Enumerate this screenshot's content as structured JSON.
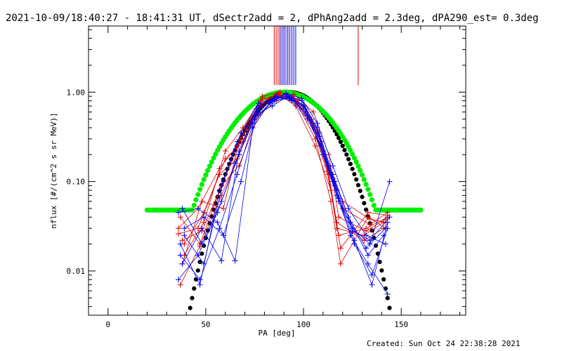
{
  "chart_data": {
    "type": "line",
    "title": "2021-10-09/18:40:27 - 18:41:31 UT, dSectr2add = 2, dPhAng2add = 2.3deg, dPA290_est=  0.3deg",
    "xlabel": "PA [deg]",
    "ylabel": "nflux [#/(cm^2 s sr MeV)]",
    "footer": "Created: Sun Oct 24 22:38:28 2021",
    "x_scale": "linear",
    "y_scale": "log",
    "xlim": [
      -10,
      183
    ],
    "ylim": [
      0.0032,
      5.5
    ],
    "x_ticks": [
      {
        "v": 0,
        "t": "0"
      },
      {
        "v": 50,
        "t": "50"
      },
      {
        "v": 100,
        "t": "100"
      },
      {
        "v": 150,
        "t": "150"
      }
    ],
    "y_ticks": [
      {
        "v": 0.01,
        "t": "0.01"
      },
      {
        "v": 0.1,
        "t": "0.10"
      },
      {
        "v": 1,
        "t": "1.00"
      }
    ],
    "grid": false,
    "colors": {
      "red": "#dd0000",
      "blue": "#0000ee",
      "green": "#00ee00",
      "black": "#000000"
    },
    "vertical_markers": {
      "top": 5.5,
      "bottom": 1.2,
      "red_pa": [
        85,
        86,
        87,
        88,
        89,
        90,
        91,
        92,
        128
      ],
      "blue_pa": [
        88,
        89,
        90,
        91,
        92,
        93,
        94,
        95,
        96
      ]
    },
    "model_curves": [
      {
        "color": "green",
        "pa_range": [
          20,
          160
        ],
        "step": 1
      },
      {
        "color": "black",
        "pa_range": [
          20,
          156
        ],
        "step": 1
      }
    ],
    "series": [
      {
        "color": "red",
        "x": [
          37,
          47,
          58,
          67,
          77,
          86,
          95,
          105,
          113,
          118,
          132,
          143
        ],
        "y": [
          0.007,
          0.019,
          0.07,
          0.2,
          0.7,
          0.95,
          0.85,
          0.42,
          0.12,
          0.025,
          0.03,
          0.04
        ]
      },
      {
        "color": "red",
        "x": [
          38,
          48,
          59,
          68,
          78,
          87,
          96,
          106,
          114,
          119,
          133,
          142
        ],
        "y": [
          0.022,
          0.028,
          0.1,
          0.3,
          0.8,
          0.92,
          0.8,
          0.3,
          0.06,
          0.012,
          0.04,
          0.03
        ]
      },
      {
        "color": "red",
        "x": [
          36,
          46,
          57,
          66,
          76,
          85,
          94,
          104,
          112,
          117,
          131,
          141
        ],
        "y": [
          0.03,
          0.05,
          0.14,
          0.25,
          0.6,
          0.88,
          0.9,
          0.5,
          0.15,
          0.03,
          0.025,
          0.035
        ]
      },
      {
        "color": "red",
        "x": [
          39,
          49,
          60,
          69,
          79,
          88,
          97,
          107,
          115,
          120,
          134,
          143
        ],
        "y": [
          0.015,
          0.035,
          0.22,
          0.4,
          0.9,
          1.0,
          0.75,
          0.35,
          0.1,
          0.05,
          0.033,
          0.045
        ]
      },
      {
        "color": "red",
        "x": [
          37,
          47,
          58,
          67,
          77,
          86,
          95,
          105,
          113,
          118,
          132,
          142
        ],
        "y": [
          0.04,
          0.02,
          0.09,
          0.15,
          0.55,
          0.8,
          0.95,
          0.6,
          0.2,
          0.04,
          0.028,
          0.038
        ]
      },
      {
        "color": "red",
        "x": [
          38,
          48,
          59,
          68,
          78,
          87,
          96,
          106,
          114,
          119,
          133,
          143
        ],
        "y": [
          0.012,
          0.06,
          0.05,
          0.35,
          0.75,
          0.97,
          0.7,
          0.25,
          0.08,
          0.018,
          0.045,
          0.042
        ]
      },
      {
        "color": "red",
        "x": [
          36,
          46,
          57,
          66,
          76,
          85,
          94,
          104,
          112,
          117,
          131,
          141
        ],
        "y": [
          0.026,
          0.03,
          0.12,
          0.18,
          0.65,
          0.9,
          0.88,
          0.45,
          0.13,
          0.035,
          0.022,
          0.03
        ]
      },
      {
        "color": "red",
        "x": [
          39,
          49,
          60,
          69,
          79,
          88,
          97,
          107,
          115,
          120,
          134,
          142
        ],
        "y": [
          0.02,
          0.045,
          0.18,
          0.28,
          0.85,
          0.93,
          0.82,
          0.38,
          0.11,
          0.06,
          0.038,
          0.035
        ]
      },
      {
        "color": "blue",
        "x": [
          37,
          47,
          57,
          66,
          75,
          84,
          92,
          100,
          108,
          116,
          124,
          133,
          143
        ],
        "y": [
          0.015,
          0.008,
          0.03,
          0.12,
          0.5,
          0.8,
          0.92,
          0.7,
          0.32,
          0.09,
          0.025,
          0.012,
          0.0055
        ]
      },
      {
        "color": "blue",
        "x": [
          38,
          48,
          58,
          67,
          76,
          85,
          93,
          101,
          109,
          117,
          125,
          134,
          144
        ],
        "y": [
          0.05,
          0.02,
          0.06,
          0.2,
          0.6,
          0.85,
          0.88,
          0.65,
          0.25,
          0.07,
          0.03,
          0.02,
          0.1
        ]
      },
      {
        "color": "blue",
        "x": [
          36,
          46,
          56,
          65,
          74,
          83,
          91,
          99,
          107,
          115,
          123,
          132,
          142
        ],
        "y": [
          0.008,
          0.015,
          0.045,
          0.16,
          0.45,
          0.75,
          0.95,
          0.8,
          0.4,
          0.12,
          0.04,
          0.018,
          0.03
        ]
      },
      {
        "color": "blue",
        "x": [
          39,
          49,
          59,
          68,
          77,
          86,
          94,
          102,
          110,
          118,
          126,
          135,
          143
        ],
        "y": [
          0.03,
          0.04,
          0.025,
          0.1,
          0.7,
          0.9,
          0.82,
          0.55,
          0.2,
          0.06,
          0.02,
          0.009,
          0.03
        ]
      },
      {
        "color": "blue",
        "x": [
          37,
          47,
          57,
          66,
          75,
          84,
          92,
          100,
          108,
          116,
          124,
          133,
          141
        ],
        "y": [
          0.02,
          0.007,
          0.08,
          0.28,
          0.55,
          0.7,
          0.9,
          0.72,
          0.35,
          0.1,
          0.035,
          0.015,
          0.025
        ]
      },
      {
        "color": "blue",
        "x": [
          38,
          48,
          58,
          67,
          76,
          85,
          93,
          101,
          109,
          117,
          125,
          134,
          144
        ],
        "y": [
          0.012,
          0.03,
          0.013,
          0.22,
          0.65,
          0.8,
          0.86,
          0.6,
          0.28,
          0.08,
          0.028,
          0.022,
          0.04
        ]
      },
      {
        "color": "blue",
        "x": [
          36,
          46,
          56,
          65,
          74,
          83,
          91,
          99,
          107,
          115,
          123,
          132,
          142
        ],
        "y": [
          0.045,
          0.05,
          0.035,
          0.013,
          0.4,
          0.78,
          0.97,
          0.85,
          0.45,
          0.15,
          0.05,
          0.025,
          0.02
        ]
      },
      {
        "color": "blue",
        "x": [
          39,
          49,
          59,
          68,
          77,
          86,
          94,
          102,
          110,
          118,
          126,
          135,
          143
        ],
        "y": [
          0.025,
          0.012,
          0.1,
          0.35,
          0.75,
          0.88,
          0.8,
          0.5,
          0.22,
          0.065,
          0.022,
          0.007,
          0.035
        ]
      }
    ]
  }
}
